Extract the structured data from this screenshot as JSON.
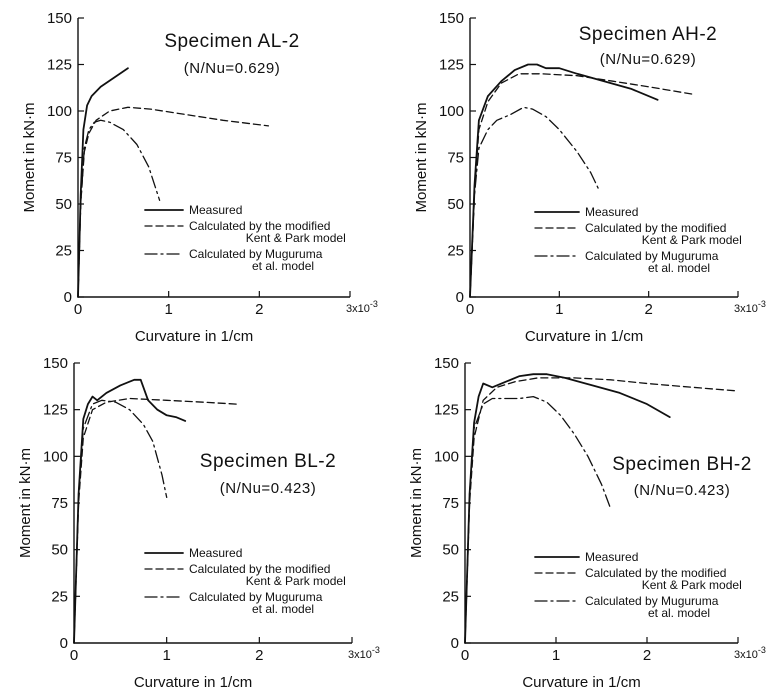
{
  "chart_data": [
    {
      "type": "line",
      "title": "Specimen AL-2",
      "subtitle": "(N/Nu=0.629)",
      "xlabel": "Curvature in 1/cm",
      "ylabel": "Moment in kN·m",
      "x_multiplier_label": "3x10",
      "x_multiplier_exp": "-3",
      "xlim": [
        0,
        3
      ],
      "ylim": [
        0,
        150
      ],
      "xticks": [
        0,
        1,
        2,
        3
      ],
      "xtick_labels": [
        "0",
        "1",
        "2",
        ""
      ],
      "yticks": [
        0,
        25,
        50,
        75,
        100,
        125,
        150
      ],
      "ytick_labels": [
        "0",
        "25",
        "50",
        "75",
        "100",
        "125",
        "150"
      ],
      "grid": false,
      "legend": "lower-right",
      "series": [
        {
          "name": "Measured",
          "style": "solid",
          "x": [
            0,
            0.03,
            0.06,
            0.1,
            0.15,
            0.25,
            0.4,
            0.55
          ],
          "y": [
            0,
            55,
            90,
            103,
            108,
            113,
            118,
            123
          ]
        },
        {
          "name": "Calculated by the modified Kent & Park model",
          "style": "dashed",
          "x": [
            0,
            0.03,
            0.07,
            0.12,
            0.2,
            0.35,
            0.55,
            0.8,
            1.2,
            1.6,
            2.1
          ],
          "y": [
            0,
            50,
            78,
            88,
            95,
            100,
            102,
            101,
            98,
            95,
            92
          ]
        },
        {
          "name": "Calculated by Muguruma et al. model",
          "style": "dashdot",
          "x": [
            0,
            0.03,
            0.07,
            0.12,
            0.18,
            0.25,
            0.35,
            0.5,
            0.65,
            0.78,
            0.9
          ],
          "y": [
            0,
            50,
            80,
            90,
            94,
            95,
            94,
            90,
            82,
            70,
            52
          ]
        }
      ]
    },
    {
      "type": "line",
      "title": "Specimen AH-2",
      "subtitle": "(N/Nu=0.629)",
      "xlabel": "Curvature in 1/cm",
      "ylabel": "Moment in kN·m",
      "x_multiplier_label": "3x10",
      "x_multiplier_exp": "-3",
      "xlim": [
        0,
        3
      ],
      "ylim": [
        0,
        150
      ],
      "xticks": [
        0,
        1,
        2,
        3
      ],
      "xtick_labels": [
        "0",
        "1",
        "2",
        ""
      ],
      "yticks": [
        0,
        25,
        50,
        75,
        100,
        125,
        150
      ],
      "ytick_labels": [
        "0",
        "25",
        "50",
        "75",
        "100",
        "125",
        "150"
      ],
      "grid": false,
      "legend": "lower-right",
      "series": [
        {
          "name": "Measured",
          "style": "solid",
          "x": [
            0,
            0.05,
            0.1,
            0.2,
            0.35,
            0.5,
            0.65,
            0.75,
            0.85,
            1.0,
            1.2,
            1.5,
            1.8,
            2.1
          ],
          "y": [
            0,
            60,
            95,
            108,
            116,
            122,
            125,
            125,
            123,
            123,
            120,
            116,
            112,
            106
          ]
        },
        {
          "name": "Calculated by the modified Kent & Park model",
          "style": "dashed",
          "x": [
            0,
            0.05,
            0.1,
            0.2,
            0.35,
            0.55,
            0.8,
            1.2,
            1.6,
            2.0,
            2.5
          ],
          "y": [
            0,
            55,
            90,
            105,
            115,
            120,
            120,
            119,
            116,
            113,
            109
          ]
        },
        {
          "name": "Calculated by Muguruma et al. model",
          "style": "dashdot",
          "x": [
            0,
            0.05,
            0.1,
            0.2,
            0.3,
            0.45,
            0.6,
            0.7,
            0.85,
            1.0,
            1.2,
            1.35,
            1.45
          ],
          "y": [
            0,
            55,
            80,
            90,
            95,
            98,
            102,
            101,
            97,
            90,
            78,
            67,
            57
          ]
        }
      ]
    },
    {
      "type": "line",
      "title": "Specimen BL-2",
      "subtitle": "(N/Nu=0.423)",
      "xlabel": "Curvature in 1/cm",
      "ylabel": "Moment in kN·m",
      "x_multiplier_label": "3x10",
      "x_multiplier_exp": "-3",
      "xlim": [
        0,
        3
      ],
      "ylim": [
        0,
        150
      ],
      "xticks": [
        0,
        1,
        2,
        3
      ],
      "xtick_labels": [
        "0",
        "1",
        "2",
        ""
      ],
      "yticks": [
        0,
        25,
        50,
        75,
        100,
        125,
        150
      ],
      "ytick_labels": [
        "0",
        "25",
        "50",
        "75",
        "100",
        "125",
        "150"
      ],
      "grid": false,
      "legend": "lower-right",
      "series": [
        {
          "name": "Measured",
          "style": "solid",
          "x": [
            0,
            0.05,
            0.1,
            0.15,
            0.2,
            0.25,
            0.35,
            0.5,
            0.65,
            0.72,
            0.8,
            0.9,
            1.0,
            1.1,
            1.2
          ],
          "y": [
            0,
            80,
            120,
            128,
            132,
            130,
            134,
            138,
            141,
            141,
            130,
            125,
            122,
            121,
            119
          ]
        },
        {
          "name": "Calculated by the modified Kent & Park model",
          "style": "dashed",
          "x": [
            0,
            0.05,
            0.1,
            0.2,
            0.35,
            0.6,
            1.0,
            1.4,
            1.75
          ],
          "y": [
            0,
            75,
            110,
            125,
            129,
            131,
            130,
            129,
            128
          ]
        },
        {
          "name": "Calculated by Muguruma et al. model",
          "style": "dashdot",
          "x": [
            0,
            0.05,
            0.1,
            0.2,
            0.3,
            0.45,
            0.6,
            0.75,
            0.85,
            0.95,
            1.0
          ],
          "y": [
            0,
            80,
            115,
            128,
            130,
            129,
            125,
            117,
            108,
            90,
            78
          ]
        }
      ]
    },
    {
      "type": "line",
      "title": "Specimen BH-2",
      "subtitle": "(N/Nu=0.423)",
      "xlabel": "Curvature in 1/cm",
      "ylabel": "Moment in kN·m",
      "x_multiplier_label": "3x10",
      "x_multiplier_exp": "-3",
      "xlim": [
        0,
        3
      ],
      "ylim": [
        0,
        150
      ],
      "xticks": [
        0,
        1,
        2,
        3
      ],
      "xtick_labels": [
        "0",
        "1",
        "2",
        ""
      ],
      "yticks": [
        0,
        25,
        50,
        75,
        100,
        125,
        150
      ],
      "ytick_labels": [
        "0",
        "25",
        "50",
        "75",
        "100",
        "125",
        "150"
      ],
      "grid": false,
      "legend": "lower-right",
      "series": [
        {
          "name": "Measured",
          "style": "solid",
          "x": [
            0,
            0.05,
            0.1,
            0.15,
            0.2,
            0.3,
            0.45,
            0.6,
            0.75,
            0.9,
            1.1,
            1.4,
            1.7,
            2.0,
            2.25
          ],
          "y": [
            0,
            80,
            118,
            132,
            139,
            137,
            140,
            143,
            144,
            144,
            142,
            138,
            134,
            128,
            121
          ]
        },
        {
          "name": "Calculated by the modified Kent & Park model",
          "style": "dashed",
          "x": [
            0,
            0.05,
            0.1,
            0.2,
            0.35,
            0.55,
            0.8,
            1.2,
            1.6,
            2.0,
            2.5,
            3.0
          ],
          "y": [
            0,
            75,
            110,
            130,
            137,
            140,
            142,
            142,
            141,
            139,
            137,
            135
          ]
        },
        {
          "name": "Calculated by Muguruma et al. model",
          "style": "dashdot",
          "x": [
            0,
            0.05,
            0.1,
            0.2,
            0.3,
            0.45,
            0.6,
            0.75,
            0.9,
            1.05,
            1.2,
            1.35,
            1.5,
            1.6
          ],
          "y": [
            0,
            80,
            115,
            128,
            131,
            131,
            131,
            132,
            129,
            122,
            112,
            100,
            85,
            72
          ]
        }
      ]
    }
  ]
}
